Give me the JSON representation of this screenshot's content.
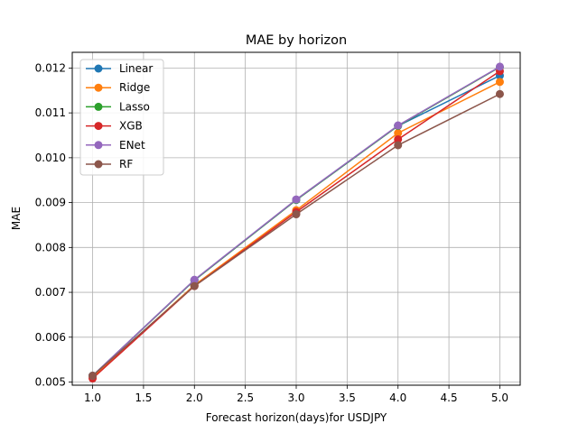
{
  "chart_data": {
    "type": "line",
    "title": "MAE by horizon",
    "xlabel": "Forecast horizon(days)for USDJPY",
    "ylabel": "MAE",
    "x": [
      1,
      2,
      3,
      4,
      5
    ],
    "xlim": [
      0.8,
      5.2
    ],
    "ylim": [
      0.00493,
      0.01235
    ],
    "xticks": [
      1.0,
      1.5,
      2.0,
      2.5,
      3.0,
      3.5,
      4.0,
      4.5,
      5.0
    ],
    "xtick_labels": [
      "1.0",
      "1.5",
      "2.0",
      "2.5",
      "3.0",
      "3.5",
      "4.0",
      "4.5",
      "5.0"
    ],
    "yticks": [
      0.005,
      0.006,
      0.007,
      0.008,
      0.009,
      0.01,
      0.011,
      0.012
    ],
    "ytick_labels": [
      "0.005",
      "0.006",
      "0.007",
      "0.008",
      "0.009",
      "0.010",
      "0.011",
      "0.012"
    ],
    "grid": true,
    "legend_position": "top-left",
    "series": [
      {
        "name": "Linear",
        "color": "#1f77b4",
        "values": [
          0.00514,
          0.00727,
          0.00906,
          0.01071,
          0.01183
        ]
      },
      {
        "name": "Ridge",
        "color": "#ff7f0e",
        "values": [
          0.00511,
          0.00716,
          0.00883,
          0.01055,
          0.01169
        ]
      },
      {
        "name": "Lasso",
        "color": "#2ca02c",
        "values": [
          0.00514,
          0.00727,
          0.00906,
          0.01071,
          0.01202
        ]
      },
      {
        "name": "XGB",
        "color": "#d62728",
        "values": [
          0.00508,
          0.00714,
          0.00879,
          0.01041,
          0.01193
        ]
      },
      {
        "name": "ENet",
        "color": "#9467bd",
        "values": [
          0.00514,
          0.00728,
          0.00907,
          0.01072,
          0.01203
        ]
      },
      {
        "name": "RF",
        "color": "#8c564b",
        "values": [
          0.00514,
          0.00714,
          0.00874,
          0.01028,
          0.01142
        ]
      }
    ]
  }
}
